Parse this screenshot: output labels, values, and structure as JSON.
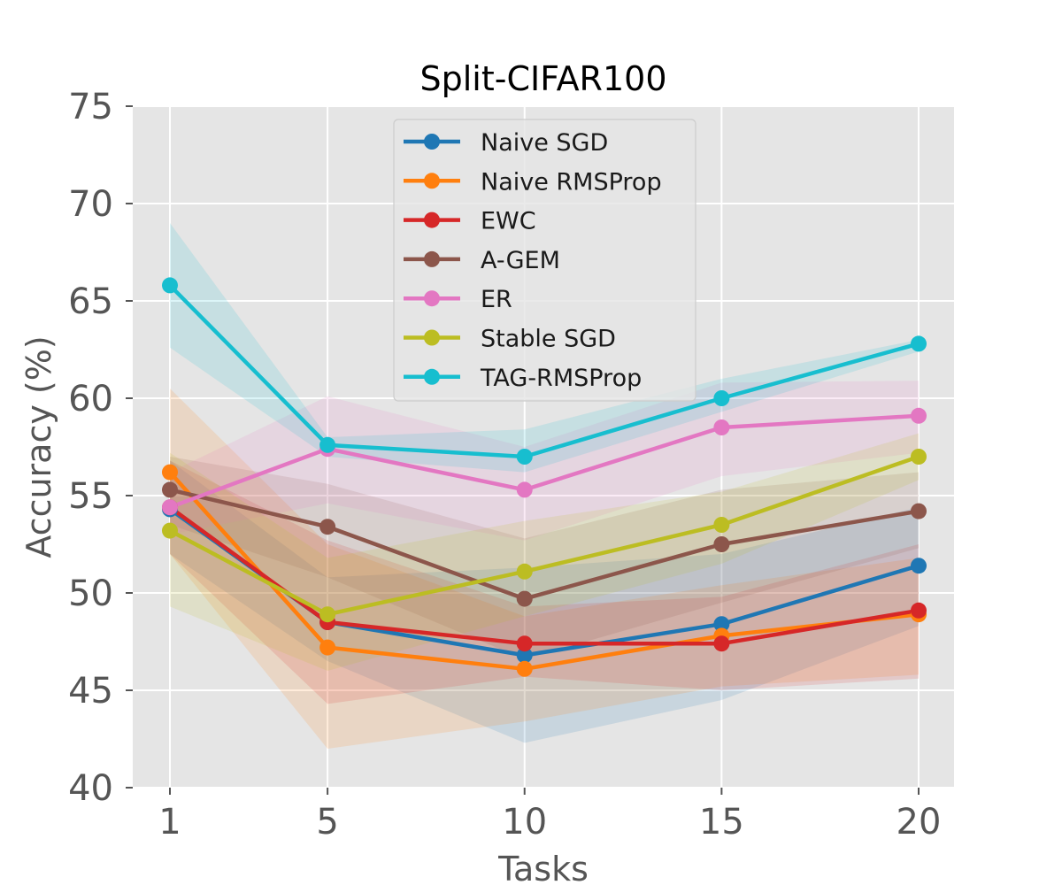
{
  "chart_data": {
    "type": "line",
    "title": "Split-CIFAR100",
    "xlabel": "Tasks",
    "ylabel": "Accuracy (%)",
    "x": [
      1,
      5,
      10,
      15,
      20
    ],
    "xticks": [
      "1",
      "5",
      "10",
      "15",
      "20"
    ],
    "yticks": [
      "40",
      "45",
      "50",
      "55",
      "60",
      "65",
      "70",
      "75"
    ],
    "ylim": [
      40,
      75
    ],
    "grid": true,
    "legend_position": "top-center",
    "series": [
      {
        "name": "Naive SGD",
        "color": "#1f77b4",
        "values": [
          54.3,
          48.5,
          46.8,
          48.4,
          51.4
        ],
        "lower": [
          52.0,
          46.5,
          42.3,
          44.5,
          48.3
        ],
        "upper": [
          56.8,
          50.8,
          51.3,
          52.0,
          54.4
        ]
      },
      {
        "name": "Naive RMSProp",
        "color": "#ff7f0e",
        "values": [
          56.2,
          47.2,
          46.1,
          47.8,
          48.9
        ],
        "lower": [
          52.0,
          42.0,
          43.4,
          45.2,
          45.8
        ],
        "upper": [
          60.5,
          52.5,
          48.8,
          50.4,
          51.8
        ]
      },
      {
        "name": "EWC",
        "color": "#d62728",
        "values": [
          54.4,
          48.5,
          47.4,
          47.4,
          49.1
        ],
        "lower": [
          52.0,
          44.3,
          45.7,
          45.0,
          45.6
        ],
        "upper": [
          56.8,
          52.7,
          49.3,
          49.8,
          52.5
        ]
      },
      {
        "name": "A-GEM",
        "color": "#8c564b",
        "values": [
          55.3,
          53.4,
          49.7,
          52.5,
          54.2
        ],
        "lower": [
          53.5,
          50.8,
          46.6,
          49.5,
          52.3
        ],
        "upper": [
          57.0,
          55.6,
          52.8,
          55.3,
          56.2
        ]
      },
      {
        "name": "ER",
        "color": "#e377c2",
        "values": [
          54.4,
          57.4,
          55.3,
          58.5,
          59.1
        ],
        "lower": [
          53.0,
          54.6,
          52.7,
          56.0,
          57.2
        ],
        "upper": [
          56.2,
          60.1,
          57.5,
          60.8,
          60.9
        ]
      },
      {
        "name": "Stable SGD",
        "color": "#bcbd22",
        "values": [
          53.2,
          48.9,
          51.1,
          53.5,
          57.0
        ],
        "lower": [
          49.3,
          46.0,
          48.8,
          51.5,
          55.8
        ],
        "upper": [
          57.2,
          51.8,
          53.7,
          55.2,
          58.2
        ]
      },
      {
        "name": "TAG-RMSProp",
        "color": "#17becf",
        "values": [
          65.8,
          57.6,
          57.0,
          60.0,
          62.8
        ],
        "lower": [
          62.6,
          57.0,
          56.2,
          59.3,
          62.4
        ],
        "upper": [
          69.0,
          58.0,
          58.4,
          61.0,
          63.0
        ]
      }
    ]
  }
}
